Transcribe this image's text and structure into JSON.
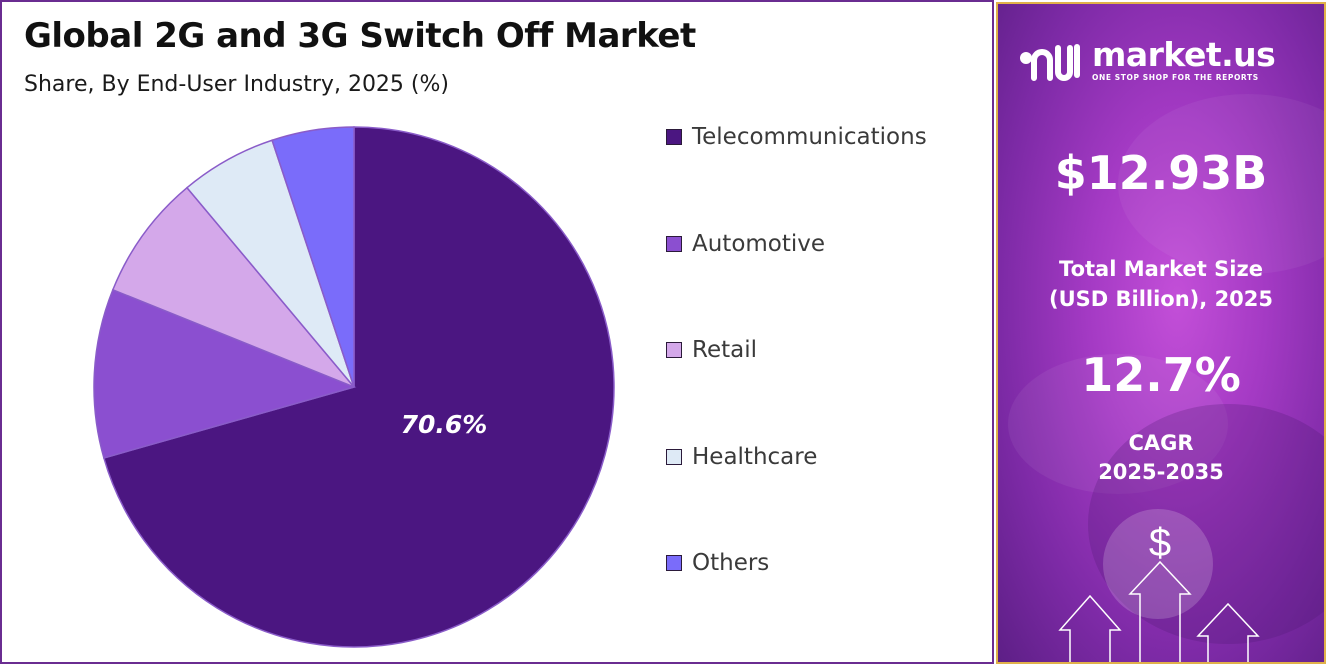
{
  "title": "Global 2G and 3G Switch Off Market",
  "subtitle": "Share, By End-User Industry, 2025 (%)",
  "chart_data": {
    "type": "pie",
    "title": "Global 2G and 3G Switch Off Market",
    "subtitle": "Share, By End-User Industry, 2025 (%)",
    "labels": [
      "Telecommunications",
      "Automotive",
      "Retail",
      "Healthcare",
      "Others"
    ],
    "values": [
      70.6,
      10.5,
      7.8,
      6.0,
      5.1
    ],
    "colors": [
      "#4b1681",
      "#8b4fd0",
      "#d4a8ea",
      "#deeaf6",
      "#7a6cfa"
    ],
    "data_labels": [
      "70.6%"
    ],
    "legend_position": "right"
  },
  "side_panel": {
    "logo_name": "market.us",
    "logo_tagline": "ONE STOP SHOP FOR THE REPORTS",
    "market_size_value": "$12.93B",
    "market_size_label_line1": "Total Market Size",
    "market_size_label_line2": "(USD Billion), 2025",
    "cagr_value": "12.7%",
    "cagr_label_line1": "CAGR",
    "cagr_label_line2": "2025-2035",
    "dollar_symbol": "$",
    "icons": [
      "market-us-logo-icon",
      "dollar-icon",
      "up-arrow-icon"
    ]
  }
}
